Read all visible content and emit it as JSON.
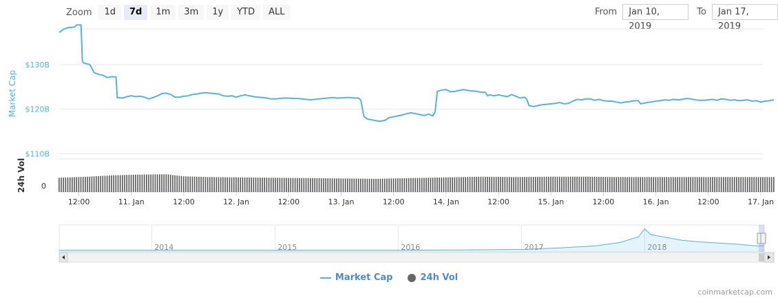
{
  "toolbar": {
    "zoom_label": "Zoom",
    "buttons": [
      "1d",
      "7d",
      "1m",
      "3m",
      "1y",
      "YTD",
      "ALL"
    ],
    "active": "7d",
    "from_label": "From",
    "from_value": "Jan 10, 2019",
    "to_label": "To",
    "to_value": "Jan 17, 2019"
  },
  "chart_data": {
    "type": "line",
    "ylabel": "Market Cap",
    "y_ticks": [
      "$130B",
      "$120B",
      "$110B"
    ],
    "y_tick_values": [
      130,
      120,
      110
    ],
    "ylim": [
      109,
      138
    ],
    "x_ticks": [
      "12:00",
      "11. Jan",
      "12:00",
      "12. Jan",
      "12:00",
      "13. Jan",
      "12:00",
      "14. Jan",
      "12:00",
      "15. Jan",
      "12:00",
      "16. Jan",
      "12:00",
      "17. Jan"
    ],
    "x_tick_hours": [
      12,
      24,
      36,
      48,
      60,
      72,
      84,
      96,
      108,
      120,
      132,
      144,
      156,
      168
    ],
    "x_hours_start": 7.5,
    "x_hours_end": 171,
    "series": [
      {
        "name": "Market Cap",
        "color": "#4fb3e4",
        "points": [
          [
            7.5,
            137.2
          ],
          [
            8.5,
            137.9
          ],
          [
            9.5,
            138.3
          ],
          [
            11,
            138.4
          ],
          [
            11.5,
            138.9
          ],
          [
            12.5,
            138.9
          ],
          [
            12.8,
            131
          ],
          [
            13,
            130.4
          ],
          [
            14.5,
            130
          ],
          [
            15.5,
            128.2
          ],
          [
            16.5,
            127.8
          ],
          [
            17.5,
            127.6
          ],
          [
            18.5,
            127.1
          ],
          [
            19.5,
            127.3
          ],
          [
            20.5,
            127.2
          ],
          [
            20.8,
            122.6
          ],
          [
            22,
            122.5
          ],
          [
            23,
            122.8
          ],
          [
            24,
            123
          ],
          [
            25,
            122.8
          ],
          [
            26,
            122.9
          ],
          [
            27,
            122.7
          ],
          [
            28,
            122.3
          ],
          [
            29,
            122.6
          ],
          [
            30,
            123
          ],
          [
            31,
            123.5
          ],
          [
            32,
            123.6
          ],
          [
            33,
            123.3
          ],
          [
            34,
            122.7
          ],
          [
            35,
            122.7
          ],
          [
            36,
            122.9
          ],
          [
            37,
            123
          ],
          [
            38,
            123.3
          ],
          [
            39,
            123.4
          ],
          [
            40,
            123.6
          ],
          [
            41,
            123.7
          ],
          [
            42,
            123.6
          ],
          [
            43,
            123.5
          ],
          [
            44,
            123.4
          ],
          [
            45,
            123
          ],
          [
            46,
            122.9
          ],
          [
            47,
            123
          ],
          [
            48,
            122.7
          ],
          [
            49,
            123
          ],
          [
            50,
            123.2
          ],
          [
            51,
            123
          ],
          [
            52,
            122.8
          ],
          [
            53,
            122.7
          ],
          [
            54,
            122.6
          ],
          [
            55,
            122.5
          ],
          [
            56,
            122.3
          ],
          [
            57,
            122.3
          ],
          [
            58,
            122.4
          ],
          [
            59,
            122.5
          ],
          [
            60,
            122.5
          ],
          [
            61,
            122.4
          ],
          [
            62,
            122.4
          ],
          [
            63,
            122.3
          ],
          [
            64,
            122.2
          ],
          [
            65,
            122.1
          ],
          [
            66,
            122.2
          ],
          [
            67,
            122.3
          ],
          [
            68,
            122.4
          ],
          [
            69,
            122.5
          ],
          [
            70,
            122.6
          ],
          [
            71,
            122.5
          ],
          [
            72,
            122.5
          ],
          [
            73,
            122.6
          ],
          [
            74,
            122.6
          ],
          [
            75,
            122.5
          ],
          [
            76,
            122.5
          ],
          [
            76.5,
            122
          ],
          [
            77.2,
            118.4
          ],
          [
            78,
            117.8
          ],
          [
            79,
            117.6
          ],
          [
            80,
            117.4
          ],
          [
            81,
            117.3
          ],
          [
            82,
            117.5
          ],
          [
            83,
            118.1
          ],
          [
            84,
            118.3
          ],
          [
            85,
            118.5
          ],
          [
            86,
            118.7
          ],
          [
            87,
            119
          ],
          [
            88,
            119.2
          ],
          [
            89,
            119
          ],
          [
            90,
            118.8
          ],
          [
            91,
            118.6
          ],
          [
            92,
            118.9
          ],
          [
            93,
            118.5
          ],
          [
            93.5,
            119.4
          ],
          [
            94,
            124
          ],
          [
            95,
            124.3
          ],
          [
            96,
            124.4
          ],
          [
            97,
            123.9
          ],
          [
            98,
            124
          ],
          [
            99,
            124.2
          ],
          [
            100,
            124.4
          ],
          [
            101,
            124.2
          ],
          [
            102,
            124.1
          ],
          [
            103,
            124
          ],
          [
            104,
            123.8
          ],
          [
            105,
            123.8
          ],
          [
            105.5,
            123
          ],
          [
            106,
            123.2
          ],
          [
            107,
            123
          ],
          [
            108,
            123.2
          ],
          [
            109,
            123
          ],
          [
            110,
            122.8
          ],
          [
            111,
            123.3
          ],
          [
            112,
            122.9
          ],
          [
            113,
            122.5
          ],
          [
            114,
            122.7
          ],
          [
            114.5,
            122.1
          ],
          [
            115,
            120.8
          ],
          [
            116,
            120.6
          ],
          [
            117,
            120.8
          ],
          [
            118,
            121
          ],
          [
            119,
            121.1
          ],
          [
            120,
            121.2
          ],
          [
            121,
            121.3
          ],
          [
            122,
            121.5
          ],
          [
            123,
            121.2
          ],
          [
            124,
            121.3
          ],
          [
            125,
            121.8
          ],
          [
            126,
            122.2
          ],
          [
            127,
            122.1
          ],
          [
            128,
            122.3
          ],
          [
            129,
            122.3
          ],
          [
            130,
            122
          ],
          [
            131,
            122.2
          ],
          [
            132,
            121.9
          ],
          [
            133,
            121.8
          ],
          [
            134,
            121.8
          ],
          [
            135,
            121.6
          ],
          [
            136,
            121.4
          ],
          [
            136.5,
            121.5
          ],
          [
            137,
            121.6
          ],
          [
            138,
            121.7
          ],
          [
            139,
            121.9
          ],
          [
            140,
            121.9
          ],
          [
            140.5,
            121.2
          ],
          [
            141,
            121.3
          ],
          [
            142,
            121.5
          ],
          [
            143,
            121.6
          ],
          [
            144,
            121.8
          ],
          [
            145,
            121.9
          ],
          [
            146,
            122.1
          ],
          [
            147,
            122
          ],
          [
            148,
            122.2
          ],
          [
            149,
            122.1
          ],
          [
            150,
            122.2
          ],
          [
            151,
            122.4
          ],
          [
            152,
            122.3
          ],
          [
            153,
            122.1
          ],
          [
            154,
            122
          ],
          [
            155,
            122
          ],
          [
            156,
            122.1
          ],
          [
            157,
            122.2
          ],
          [
            158,
            122
          ],
          [
            159,
            122.3
          ],
          [
            160,
            122.2
          ],
          [
            161,
            122
          ],
          [
            162,
            122.1
          ],
          [
            163,
            121.9
          ],
          [
            164,
            122
          ],
          [
            165,
            122.1
          ],
          [
            166,
            121.8
          ],
          [
            167,
            121.9
          ],
          [
            168,
            121.6
          ],
          [
            169,
            121.8
          ],
          [
            170,
            121.9
          ],
          [
            171,
            122.1
          ]
        ]
      },
      {
        "name": "24h Vol",
        "color": "#666666",
        "ylabel": "24h Vol",
        "y_ticks": [
          "0"
        ],
        "levels": [
          [
            7.5,
            0.66
          ],
          [
            14,
            0.72
          ],
          [
            20,
            0.8
          ],
          [
            26,
            0.84
          ],
          [
            32,
            0.86
          ],
          [
            36,
            0.74
          ],
          [
            42,
            0.7
          ],
          [
            48,
            0.68
          ],
          [
            56,
            0.66
          ],
          [
            64,
            0.64
          ],
          [
            72,
            0.62
          ],
          [
            80,
            0.6
          ],
          [
            88,
            0.64
          ],
          [
            96,
            0.68
          ],
          [
            104,
            0.72
          ],
          [
            112,
            0.7
          ],
          [
            120,
            0.72
          ],
          [
            128,
            0.72
          ],
          [
            136,
            0.7
          ],
          [
            144,
            0.7
          ],
          [
            152,
            0.7
          ],
          [
            160,
            0.7
          ],
          [
            171,
            0.7
          ]
        ]
      }
    ],
    "navigator": {
      "year_labels": [
        "2014",
        "2015",
        "2016",
        "2017",
        "2018"
      ],
      "year_positions": [
        0.0,
        1.0,
        2.0,
        3.0,
        4.0
      ],
      "years_span": [
        -0.75,
        4.97
      ],
      "series": [
        [
          -0.75,
          0.1
        ],
        [
          0,
          0.1
        ],
        [
          1,
          0.1
        ],
        [
          2,
          0.2
        ],
        [
          2.5,
          0.5
        ],
        [
          3,
          0.9
        ],
        [
          3.3,
          2.2
        ],
        [
          3.6,
          4
        ],
        [
          3.8,
          7
        ],
        [
          3.95,
          12
        ],
        [
          4.0,
          19
        ],
        [
          4.05,
          14
        ],
        [
          4.15,
          12
        ],
        [
          4.3,
          9
        ],
        [
          4.45,
          7.5
        ],
        [
          4.6,
          6.5
        ],
        [
          4.75,
          5.5
        ],
        [
          4.9,
          4
        ],
        [
          4.97,
          4.2
        ]
      ]
    }
  },
  "legend": [
    {
      "label": "Market Cap",
      "color": "#4fb3e4"
    },
    {
      "label": "24h Vol",
      "color": "#666666"
    }
  ],
  "credits": "coinmarketcap.com"
}
